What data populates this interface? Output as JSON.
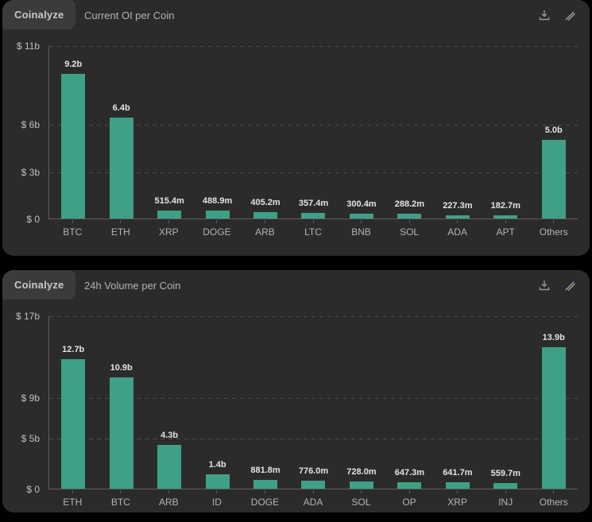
{
  "page": {
    "background": "#000000"
  },
  "cards": [
    {
      "brand": "Coinalyze",
      "title": "Current OI per Coin",
      "icons": {
        "download": "download-icon",
        "draw": "draw-trendline-icon"
      }
    },
    {
      "brand": "Coinalyze",
      "title": "24h Volume per Coin",
      "icons": {
        "download": "download-icon",
        "draw": "draw-trendline-icon"
      }
    }
  ],
  "colors": {
    "bar": "#3fa087",
    "card_bg": "#2b2b2b",
    "badge_bg": "#3b3b3b",
    "axis": "#5f5f5f",
    "grid": "#4e4e4e",
    "value_label": "#e3e3e3",
    "axis_label": "#c0c0c0",
    "icon": "#969696"
  },
  "chart_data": [
    {
      "type": "bar",
      "title": "Current OI per Coin",
      "categories": [
        "BTC",
        "ETH",
        "XRP",
        "DOGE",
        "ARB",
        "LTC",
        "BNB",
        "SOL",
        "ADA",
        "APT",
        "Others"
      ],
      "values_usd_billions": [
        9.2,
        6.4,
        0.5154,
        0.4889,
        0.4052,
        0.3574,
        0.3004,
        0.2882,
        0.2273,
        0.1827,
        5.0
      ],
      "value_labels": [
        "9.2b",
        "6.4b",
        "515.4m",
        "488.9m",
        "405.2m",
        "357.4m",
        "300.4m",
        "288.2m",
        "227.3m",
        "182.7m",
        "5.0b"
      ],
      "xlabel": "",
      "ylabel": "USD",
      "ylim": [
        0,
        11
      ],
      "yticks": [
        {
          "value": 11,
          "label": "$ 11b"
        },
        {
          "value": 6,
          "label": "$ 6b"
        },
        {
          "value": 3,
          "label": "$ 3b"
        },
        {
          "value": 0,
          "label": "$ 0"
        }
      ],
      "grid": true,
      "legend": false,
      "bar_color": "#3fa087"
    },
    {
      "type": "bar",
      "title": "24h Volume per Coin",
      "categories": [
        "ETH",
        "BTC",
        "ARB",
        "ID",
        "DOGE",
        "ADA",
        "SOL",
        "OP",
        "XRP",
        "INJ",
        "Others"
      ],
      "values_usd_billions": [
        12.7,
        10.9,
        4.3,
        1.4,
        0.8818,
        0.776,
        0.728,
        0.6473,
        0.6417,
        0.5597,
        13.9
      ],
      "value_labels": [
        "12.7b",
        "10.9b",
        "4.3b",
        "1.4b",
        "881.8m",
        "776.0m",
        "728.0m",
        "647.3m",
        "641.7m",
        "559.7m",
        "13.9b"
      ],
      "xlabel": "",
      "ylabel": "USD",
      "ylim": [
        0,
        17
      ],
      "yticks": [
        {
          "value": 17,
          "label": "$ 17b"
        },
        {
          "value": 9,
          "label": "$ 9b"
        },
        {
          "value": 5,
          "label": "$ 5b"
        },
        {
          "value": 0,
          "label": "$ 0"
        }
      ],
      "grid": true,
      "legend": false,
      "bar_color": "#3fa087"
    }
  ]
}
